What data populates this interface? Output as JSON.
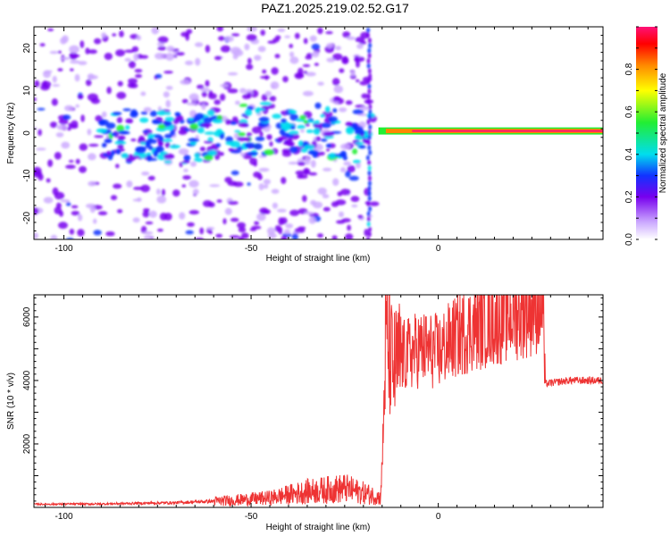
{
  "title": "PAZ1.2025.219.02.52.G17",
  "chart_data": [
    {
      "type": "heatmap",
      "xlabel": "Height of straight line (km)",
      "ylabel": "Frequency (Hz)",
      "xlim": [
        -108,
        44
      ],
      "ylim": [
        -25,
        25
      ],
      "xticks": [
        -100,
        -50,
        0
      ],
      "yticks": [
        -20,
        -10,
        0,
        10,
        20
      ],
      "colorbar": {
        "label": "Normalized spectral amplitude",
        "range": [
          0,
          1
        ],
        "ticks": [
          "0.0",
          "0.2",
          "0.4",
          "0.6",
          "0.8"
        ]
      },
      "features": [
        {
          "x_range": [
            -108,
            -17
          ],
          "freq_range": [
            -25,
            25
          ],
          "amplitude": "low, scattered noise"
        },
        {
          "x_range": [
            -90,
            -20
          ],
          "freq_center": 0,
          "amplitude": 0.35,
          "description": "broad band of higher amplitude near 0 Hz"
        },
        {
          "x": -18.5,
          "freq_range": [
            -25,
            25
          ],
          "amplitude": 0.3,
          "description": "vertical streak"
        },
        {
          "x_range": [
            -16,
            44
          ],
          "freq": 0.5,
          "amplitude": 0.95,
          "description": "narrow strong tone"
        }
      ]
    },
    {
      "type": "line",
      "xlabel": "Height of straight line (km)",
      "ylabel": "SNR (10 * v/v)",
      "xlim": [
        -108,
        44
      ],
      "ylim": [
        0,
        6700
      ],
      "xticks": [
        -100,
        -50,
        0
      ],
      "yticks": [
        2000,
        4000,
        6000
      ],
      "series": [
        {
          "color": "#ee3333",
          "x": [
            -108,
            -90,
            -70,
            -55,
            -45,
            -35,
            -25,
            -18,
            -15.5,
            -15,
            -14,
            -12,
            -10,
            -5,
            0,
            5,
            10,
            15,
            20,
            25,
            28,
            28.5,
            35,
            44
          ],
          "y": [
            100,
            110,
            150,
            220,
            300,
            500,
            600,
            400,
            300,
            1200,
            5400,
            4300,
            4700,
            5000,
            4900,
            5400,
            5700,
            5900,
            6100,
            6300,
            6500,
            3900,
            4000,
            4000
          ]
        }
      ]
    }
  ]
}
